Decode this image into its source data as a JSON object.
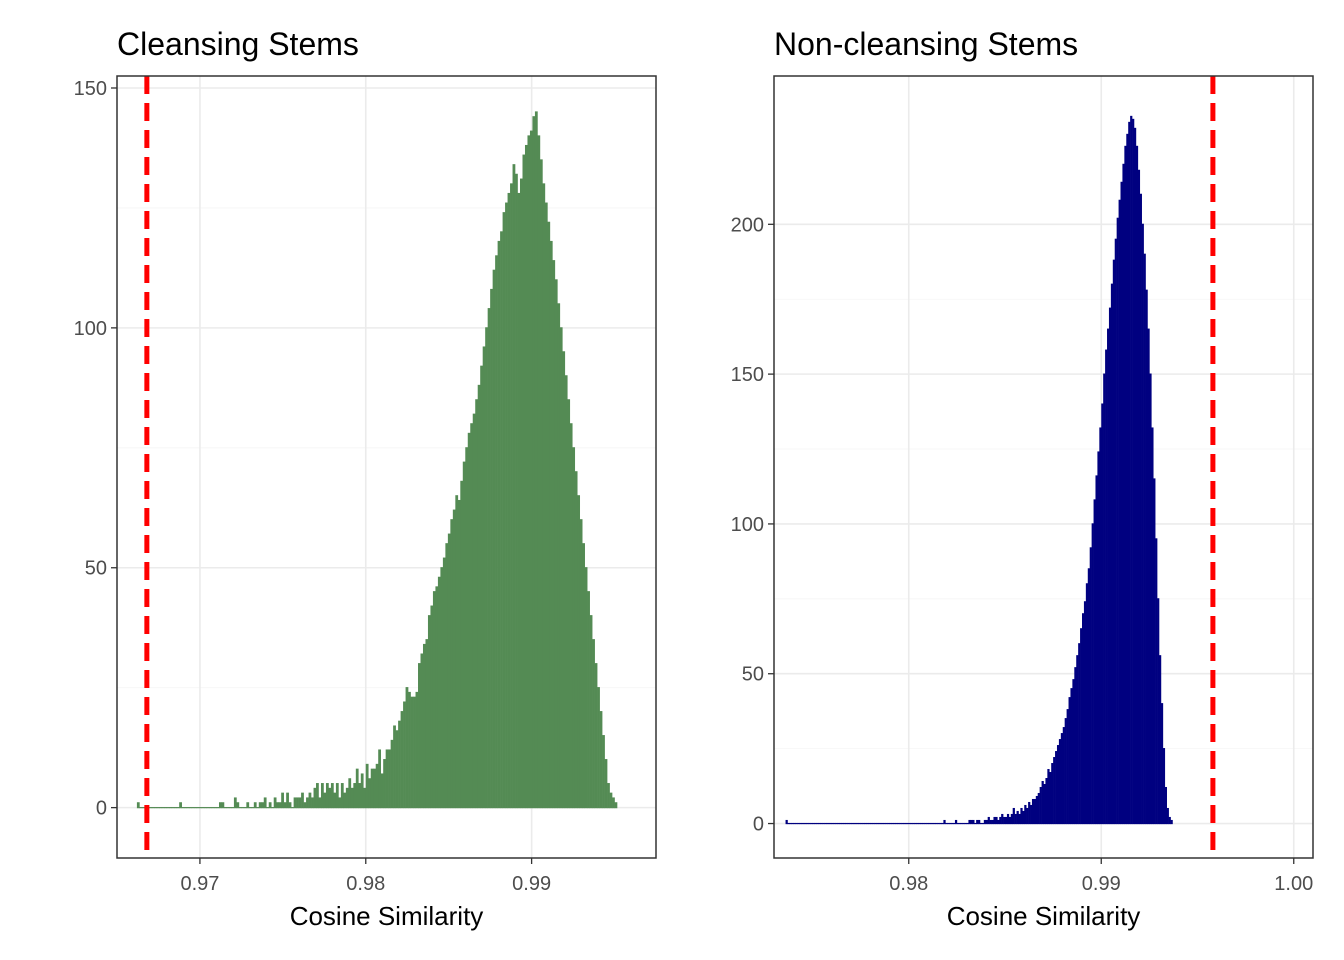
{
  "chart_data": [
    {
      "type": "bar",
      "title": "Cleansing Stems",
      "xlabel": "Cosine Similarity",
      "ylabel": "",
      "xlim": [
        0.965,
        0.9975
      ],
      "ylim": [
        -10.5,
        152.5
      ],
      "xticks": [
        0.97,
        0.98,
        0.99
      ],
      "xtick_labels": [
        "0.97",
        "0.98",
        "0.99"
      ],
      "yticks": [
        0,
        50,
        100,
        150
      ],
      "ytick_labels": [
        "0",
        "50",
        "100",
        "150"
      ],
      "grid": true,
      "bar_color": "#548b54",
      "vline": {
        "x": 0.9668,
        "color": "#ff0000",
        "style": "dashed"
      },
      "bins": {
        "start": 0.9662,
        "width": 0.00015,
        "counts": [
          1,
          0,
          0,
          0,
          0,
          0,
          0,
          0,
          0,
          0,
          0,
          0,
          0,
          0,
          0,
          0,
          0,
          1,
          0,
          0,
          0,
          0,
          0,
          0,
          0,
          0,
          0,
          0,
          0,
          0,
          0,
          0,
          0,
          1,
          1,
          0,
          0,
          0,
          0,
          2,
          1,
          0,
          0,
          0,
          1,
          0,
          0,
          1,
          0,
          1,
          1,
          2,
          0,
          1,
          0,
          2,
          1,
          1,
          3,
          1,
          3,
          1,
          0,
          2,
          2,
          2,
          3,
          1,
          2,
          3,
          2,
          4,
          5,
          2,
          5,
          3,
          5,
          4,
          5,
          3,
          5,
          2,
          5,
          3,
          4,
          6,
          4,
          5,
          8,
          5,
          7,
          4,
          9,
          6,
          8,
          8,
          9,
          12,
          7,
          10,
          12,
          12,
          14,
          17,
          16,
          18,
          20,
          22,
          25,
          24,
          23,
          23,
          24,
          30,
          32,
          34,
          35,
          40,
          42,
          45,
          46,
          48,
          50,
          52,
          55,
          57,
          60,
          62,
          65,
          64,
          68,
          72,
          75,
          78,
          80,
          82,
          85,
          88,
          92,
          96,
          100,
          104,
          108,
          112,
          115,
          118,
          120,
          124,
          126,
          128,
          130,
          134,
          132,
          128,
          131,
          136,
          138,
          140,
          141,
          144,
          145,
          140,
          135,
          130,
          126,
          122,
          118,
          114,
          110,
          105,
          100,
          95,
          90,
          85,
          80,
          75,
          70,
          65,
          60,
          55,
          50,
          45,
          40,
          35,
          30,
          25,
          20,
          15,
          10,
          5,
          3,
          2,
          1
        ]
      }
    },
    {
      "type": "bar",
      "title": "Non-cleansing Stems",
      "xlabel": "Cosine Similarity",
      "ylabel": "",
      "xlim": [
        0.973,
        1.001
      ],
      "ylim": [
        -11.5,
        249.5
      ],
      "xticks": [
        0.98,
        0.99,
        1.0
      ],
      "xtick_labels": [
        "0.98",
        "0.99",
        "1.00"
      ],
      "yticks": [
        0,
        50,
        100,
        150,
        200
      ],
      "ytick_labels": [
        "0",
        "50",
        "100",
        "150",
        "200"
      ],
      "grid": true,
      "bar_color": "#000080",
      "vline": {
        "x": 0.9958,
        "color": "#ff0000",
        "style": "dashed"
      },
      "bins": {
        "start": 0.9736,
        "width": 0.0001,
        "counts": [
          1,
          0,
          0,
          0,
          0,
          0,
          0,
          0,
          0,
          0,
          0,
          0,
          0,
          0,
          0,
          0,
          0,
          0,
          0,
          0,
          0,
          0,
          0,
          0,
          0,
          0,
          0,
          0,
          0,
          0,
          0,
          0,
          0,
          0,
          0,
          0,
          0,
          0,
          0,
          0,
          0,
          0,
          0,
          0,
          0,
          0,
          0,
          0,
          0,
          0,
          0,
          0,
          0,
          0,
          0,
          0,
          0,
          0,
          0,
          0,
          0,
          0,
          0,
          0,
          0,
          0,
          0,
          0,
          0,
          0,
          0,
          0,
          0,
          0,
          0,
          0,
          0,
          0,
          0,
          0,
          0,
          0,
          1,
          0,
          0,
          0,
          0,
          0,
          1,
          0,
          0,
          0,
          0,
          0,
          0,
          1,
          1,
          1,
          0,
          1,
          1,
          0,
          0,
          1,
          1,
          2,
          1,
          1,
          2,
          2,
          1,
          2,
          3,
          2,
          2,
          3,
          2,
          3,
          5,
          3,
          4,
          3,
          5,
          4,
          6,
          5,
          7,
          6,
          8,
          8,
          9,
          10,
          12,
          14,
          13,
          15,
          18,
          17,
          20,
          22,
          24,
          26,
          28,
          30,
          32,
          35,
          38,
          42,
          45,
          48,
          52,
          56,
          60,
          65,
          70,
          74,
          80,
          85,
          92,
          100,
          108,
          116,
          124,
          132,
          140,
          150,
          158,
          165,
          172,
          180,
          188,
          195,
          202,
          208,
          214,
          220,
          226,
          230,
          234,
          236,
          235,
          232,
          226,
          218,
          210,
          200,
          190,
          178,
          165,
          150,
          132,
          115,
          95,
          75,
          56,
          40,
          25,
          12,
          5,
          2,
          1
        ]
      }
    }
  ]
}
